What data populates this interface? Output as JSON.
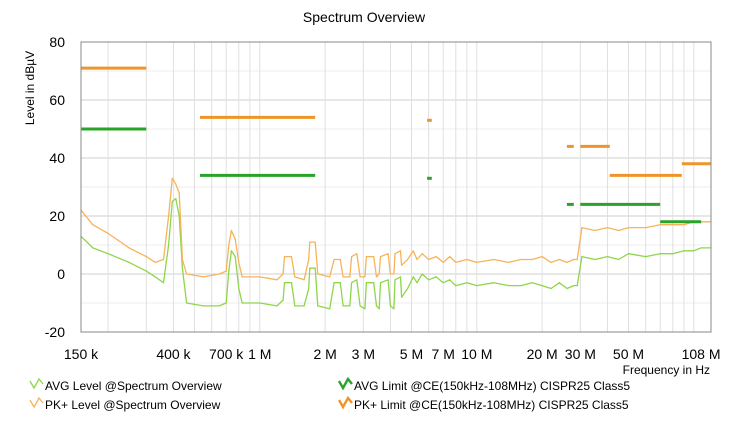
{
  "chart_data": {
    "type": "line",
    "title": "Spectrum Overview",
    "xlabel": "Frequency in Hz",
    "ylabel": "Level in dBµV",
    "x_scale": "log",
    "xlim": [
      150000,
      120000000
    ],
    "ylim": [
      -20,
      80
    ],
    "grid": true,
    "y_ticks": [
      {
        "value": -20,
        "label": "-20"
      },
      {
        "value": 0,
        "label": "0"
      },
      {
        "value": 20,
        "label": "20"
      },
      {
        "value": 40,
        "label": "40"
      },
      {
        "value": 60,
        "label": "60"
      },
      {
        "value": 80,
        "label": "80"
      }
    ],
    "x_ticks": [
      {
        "value": 150000,
        "label": "150 k"
      },
      {
        "value": 400000,
        "label": "400 k"
      },
      {
        "value": 700000,
        "label": "700 k"
      },
      {
        "value": 1000000,
        "label": "1 M"
      },
      {
        "value": 2000000,
        "label": "2 M"
      },
      {
        "value": 3000000,
        "label": "3 M"
      },
      {
        "value": 5000000,
        "label": "5 M"
      },
      {
        "value": 7000000,
        "label": "7 M"
      },
      {
        "value": 10000000,
        "label": "10 M"
      },
      {
        "value": 20000000,
        "label": "20 M"
      },
      {
        "value": 30000000,
        "label": "30 M"
      },
      {
        "value": 50000000,
        "label": "50 M"
      },
      {
        "value": 108000000,
        "label": "108 M"
      }
    ],
    "legend_position": "bottom",
    "series": [
      {
        "name": "AVG Level @Spectrum Overview",
        "color": "#8ed64a",
        "kind": "trace",
        "points": [
          [
            150000,
            13
          ],
          [
            170000,
            9
          ],
          [
            200000,
            7
          ],
          [
            250000,
            4
          ],
          [
            300000,
            1
          ],
          [
            330000,
            -1
          ],
          [
            360000,
            -3
          ],
          [
            380000,
            10
          ],
          [
            395000,
            25
          ],
          [
            410000,
            26
          ],
          [
            425000,
            20
          ],
          [
            440000,
            2
          ],
          [
            460000,
            -10
          ],
          [
            550000,
            -11
          ],
          [
            650000,
            -11
          ],
          [
            700000,
            -10
          ],
          [
            720000,
            1
          ],
          [
            740000,
            8
          ],
          [
            770000,
            6
          ],
          [
            800000,
            -5
          ],
          [
            830000,
            -10
          ],
          [
            1000000,
            -10
          ],
          [
            1200000,
            -11
          ],
          [
            1280000,
            -9
          ],
          [
            1300000,
            -3
          ],
          [
            1400000,
            -3
          ],
          [
            1450000,
            -11
          ],
          [
            1600000,
            -11
          ],
          [
            1680000,
            -5
          ],
          [
            1700000,
            2
          ],
          [
            1800000,
            2
          ],
          [
            1850000,
            -11
          ],
          [
            2100000,
            -12
          ],
          [
            2200000,
            -3
          ],
          [
            2350000,
            -3
          ],
          [
            2420000,
            -11
          ],
          [
            2600000,
            -11
          ],
          [
            2650000,
            -3
          ],
          [
            2800000,
            -2
          ],
          [
            2900000,
            -11
          ],
          [
            3050000,
            -12
          ],
          [
            3100000,
            -3
          ],
          [
            3350000,
            -3
          ],
          [
            3450000,
            -11
          ],
          [
            3550000,
            -12
          ],
          [
            3600000,
            -3
          ],
          [
            3900000,
            -2
          ],
          [
            4000000,
            -11
          ],
          [
            4150000,
            -12
          ],
          [
            4200000,
            -2
          ],
          [
            4450000,
            -1
          ],
          [
            4500000,
            -8
          ],
          [
            4800000,
            -5
          ],
          [
            5100000,
            -1
          ],
          [
            5300000,
            -3
          ],
          [
            5600000,
            0
          ],
          [
            6000000,
            -2
          ],
          [
            6500000,
            -1
          ],
          [
            7000000,
            -3
          ],
          [
            7500000,
            -2
          ],
          [
            8000000,
            -4
          ],
          [
            9000000,
            -3
          ],
          [
            10000000,
            -4
          ],
          [
            12000000,
            -3
          ],
          [
            14000000,
            -4
          ],
          [
            16000000,
            -4
          ],
          [
            18000000,
            -3
          ],
          [
            20000000,
            -4
          ],
          [
            22000000,
            -5
          ],
          [
            24000000,
            -3
          ],
          [
            26000000,
            -5
          ],
          [
            28000000,
            -4
          ],
          [
            29000000,
            -4
          ],
          [
            30500000,
            6
          ],
          [
            35000000,
            5
          ],
          [
            40000000,
            6
          ],
          [
            45000000,
            5
          ],
          [
            50000000,
            7
          ],
          [
            60000000,
            6
          ],
          [
            70000000,
            7
          ],
          [
            80000000,
            7
          ],
          [
            90000000,
            8
          ],
          [
            100000000,
            8
          ],
          [
            108000000,
            9
          ],
          [
            120000000,
            9
          ]
        ]
      },
      {
        "name": "PK+ Level @Spectrum Overview",
        "color": "#f7b35a",
        "kind": "trace",
        "points": [
          [
            150000,
            22
          ],
          [
            170000,
            17
          ],
          [
            200000,
            14
          ],
          [
            250000,
            9
          ],
          [
            300000,
            6
          ],
          [
            330000,
            4
          ],
          [
            360000,
            5
          ],
          [
            380000,
            20
          ],
          [
            395000,
            33
          ],
          [
            410000,
            31
          ],
          [
            425000,
            28
          ],
          [
            440000,
            5
          ],
          [
            460000,
            0
          ],
          [
            550000,
            -1
          ],
          [
            650000,
            0
          ],
          [
            700000,
            1
          ],
          [
            720000,
            10
          ],
          [
            740000,
            15
          ],
          [
            770000,
            12
          ],
          [
            800000,
            4
          ],
          [
            830000,
            -1
          ],
          [
            1000000,
            -1
          ],
          [
            1200000,
            -2
          ],
          [
            1280000,
            0
          ],
          [
            1300000,
            6
          ],
          [
            1400000,
            6
          ],
          [
            1450000,
            -1
          ],
          [
            1600000,
            -2
          ],
          [
            1680000,
            5
          ],
          [
            1700000,
            11
          ],
          [
            1800000,
            11
          ],
          [
            1850000,
            0
          ],
          [
            2100000,
            -1
          ],
          [
            2200000,
            5
          ],
          [
            2350000,
            5
          ],
          [
            2420000,
            -1
          ],
          [
            2600000,
            -1
          ],
          [
            2650000,
            6
          ],
          [
            2800000,
            7
          ],
          [
            2900000,
            -1
          ],
          [
            3050000,
            -1
          ],
          [
            3100000,
            6
          ],
          [
            3350000,
            6
          ],
          [
            3450000,
            -1
          ],
          [
            3550000,
            0
          ],
          [
            3600000,
            6
          ],
          [
            3900000,
            7
          ],
          [
            4000000,
            0
          ],
          [
            4150000,
            0
          ],
          [
            4200000,
            7
          ],
          [
            4450000,
            8
          ],
          [
            4500000,
            3
          ],
          [
            4800000,
            5
          ],
          [
            5100000,
            8
          ],
          [
            5300000,
            5
          ],
          [
            5600000,
            7
          ],
          [
            6000000,
            5
          ],
          [
            6500000,
            6
          ],
          [
            7000000,
            4
          ],
          [
            7500000,
            6
          ],
          [
            8000000,
            4
          ],
          [
            9000000,
            5
          ],
          [
            10000000,
            4
          ],
          [
            12000000,
            5
          ],
          [
            14000000,
            4
          ],
          [
            16000000,
            5
          ],
          [
            18000000,
            5
          ],
          [
            20000000,
            6
          ],
          [
            22000000,
            4
          ],
          [
            24000000,
            5
          ],
          [
            26000000,
            4
          ],
          [
            28000000,
            5
          ],
          [
            29000000,
            5
          ],
          [
            30500000,
            16
          ],
          [
            35000000,
            15
          ],
          [
            40000000,
            16
          ],
          [
            45000000,
            15
          ],
          [
            50000000,
            16
          ],
          [
            60000000,
            16
          ],
          [
            70000000,
            17
          ],
          [
            80000000,
            17
          ],
          [
            90000000,
            17
          ],
          [
            100000000,
            18
          ],
          [
            108000000,
            18
          ],
          [
            120000000,
            18
          ]
        ]
      },
      {
        "name": "AVG Limit @CE(150kHz-108MHz) CISPR25 Class5",
        "color": "#2aa32a",
        "kind": "limit",
        "segments": [
          [
            150000,
            300000,
            50
          ],
          [
            530000,
            1800000,
            34
          ],
          [
            5900000,
            6200000,
            33
          ],
          [
            26000000,
            28000000,
            24
          ],
          [
            30000000,
            70000000,
            24
          ],
          [
            70000000,
            108000000,
            18
          ]
        ]
      },
      {
        "name": "PK+ Limit @CE(150kHz-108MHz) CISPR25 Class5",
        "color": "#ef9428",
        "kind": "limit",
        "segments": [
          [
            150000,
            300000,
            71
          ],
          [
            530000,
            1800000,
            54
          ],
          [
            5900000,
            6200000,
            53
          ],
          [
            26000000,
            28000000,
            44
          ],
          [
            30000000,
            41000000,
            44
          ],
          [
            41000000,
            88000000,
            34
          ],
          [
            88000000,
            120000000,
            38
          ]
        ]
      }
    ]
  }
}
